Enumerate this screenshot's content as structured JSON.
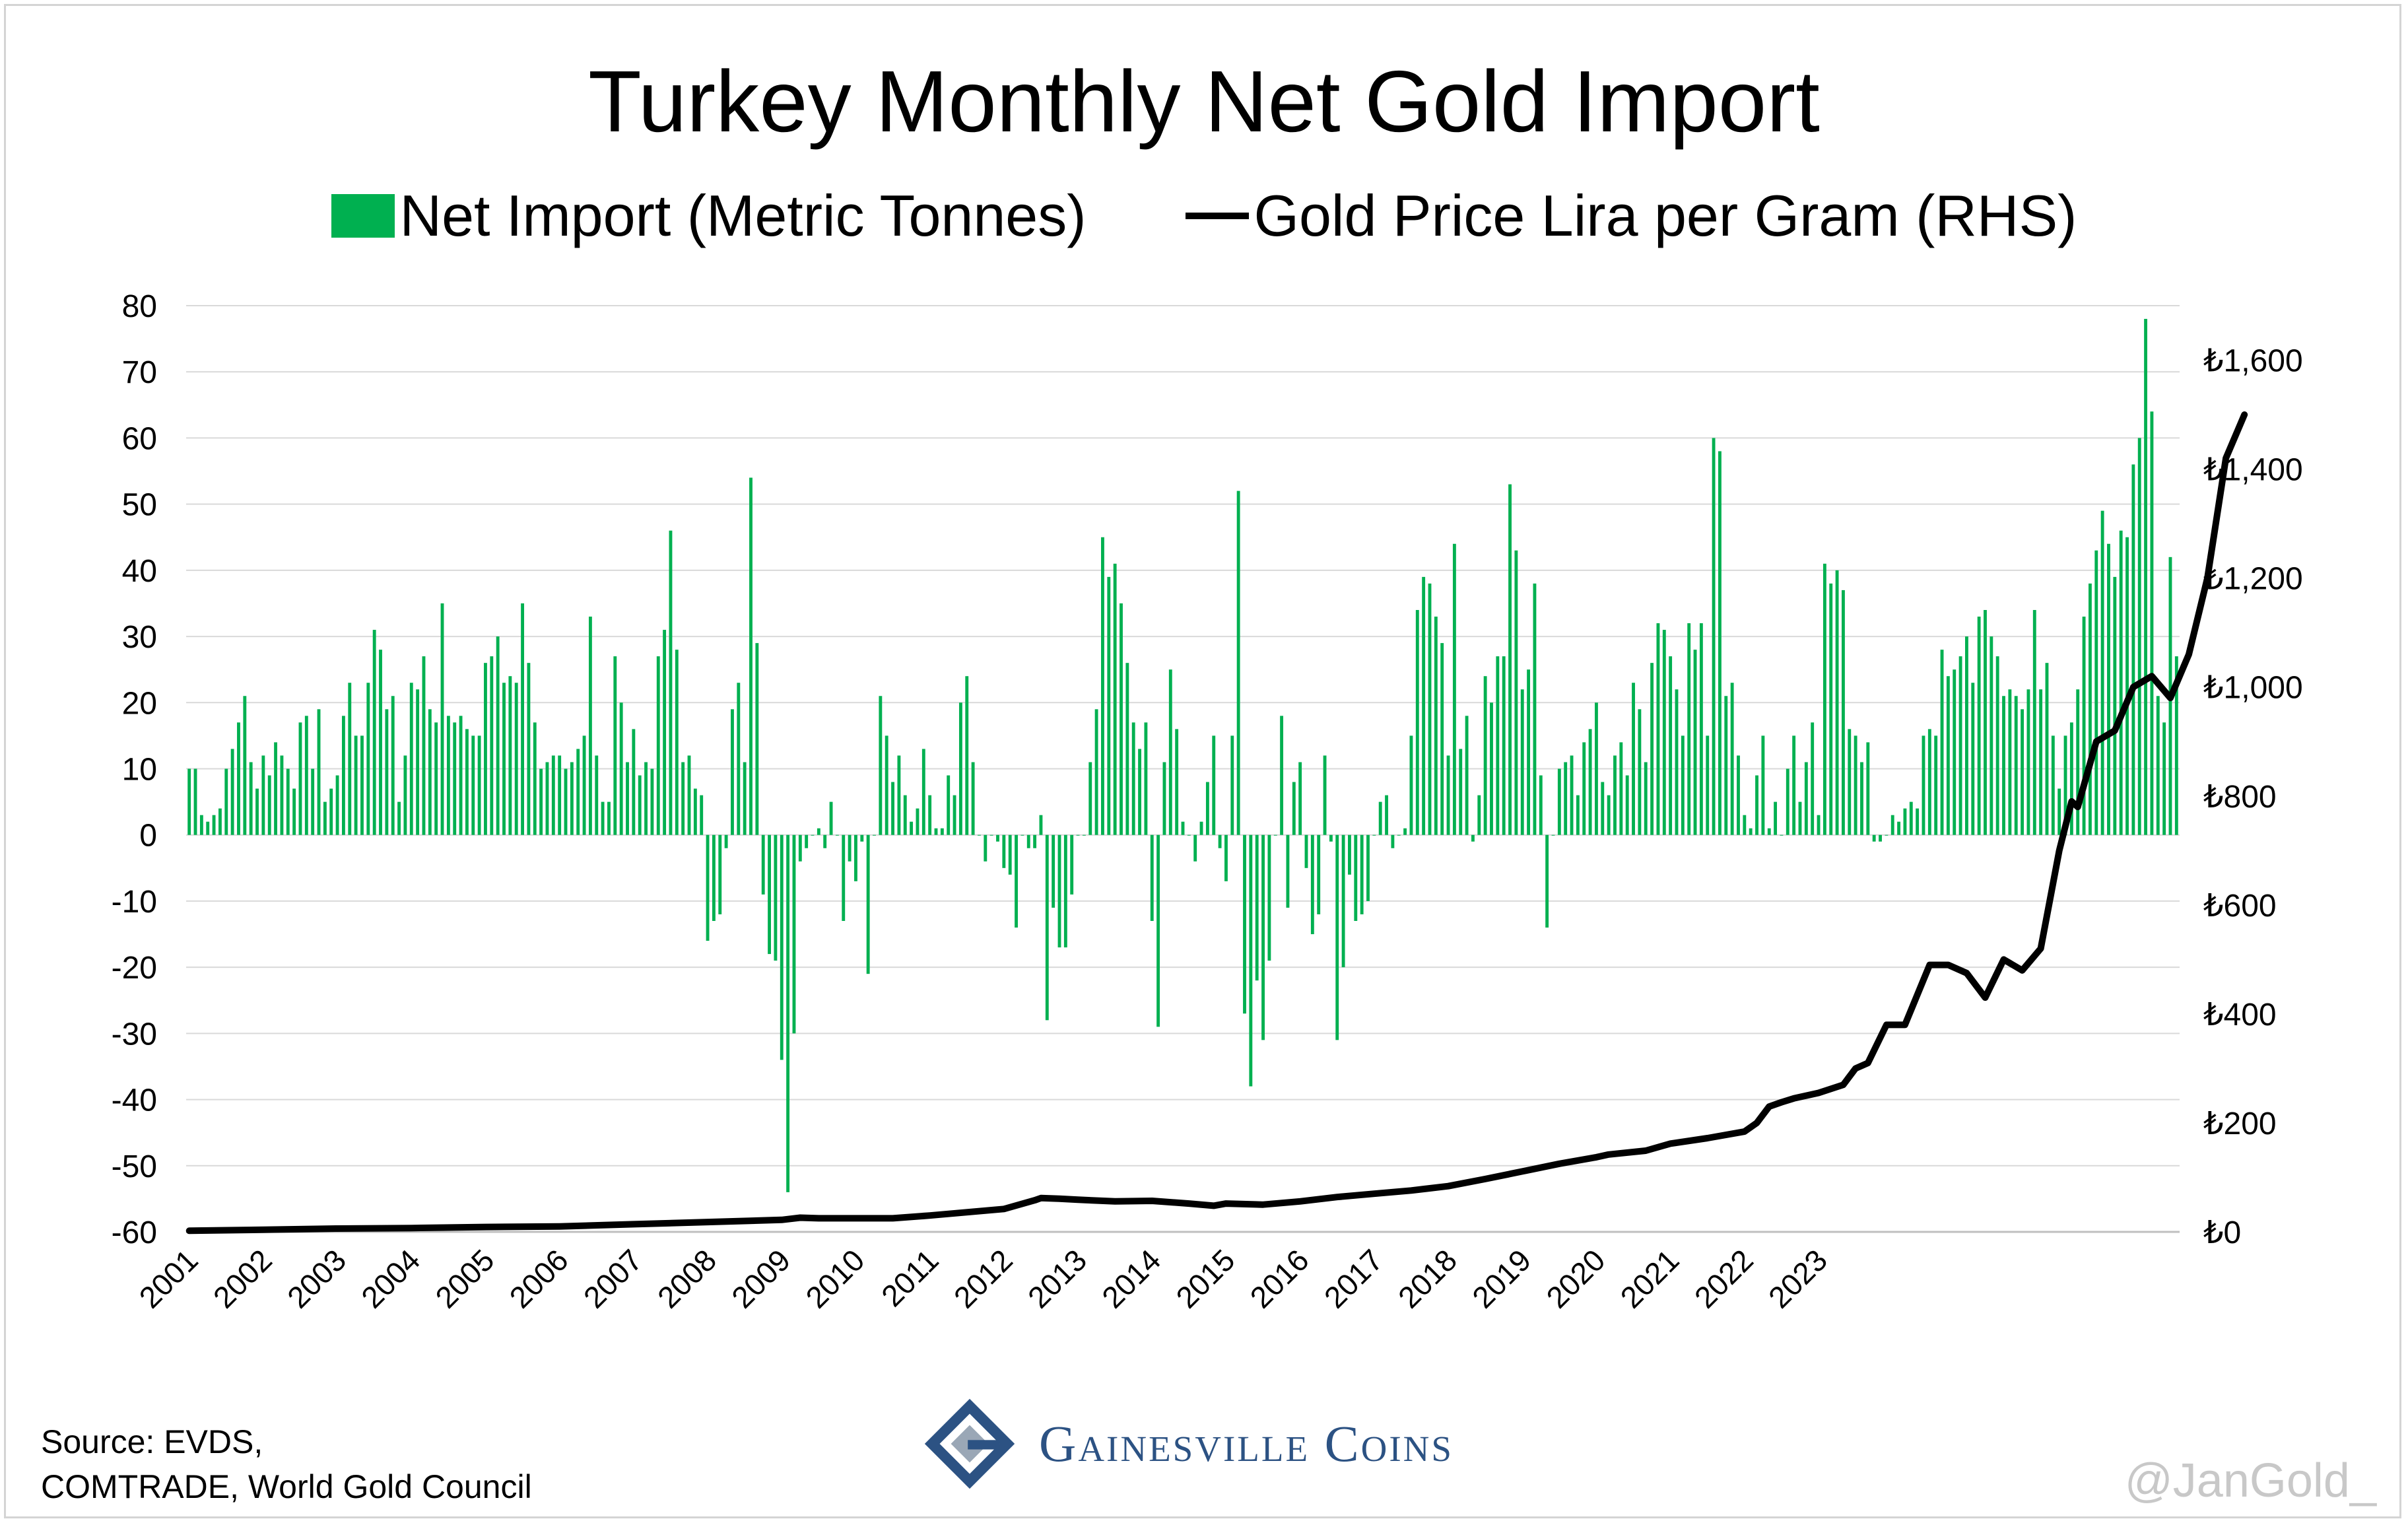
{
  "title": "Turkey Monthly Net Gold Import",
  "legend": {
    "bars": "Net Import (Metric Tonnes)",
    "line": "Gold Price Lira per Gram (RHS)"
  },
  "colors": {
    "bar": "#00b050",
    "line": "#000000",
    "grid": "#d9d9d9",
    "brand": "#2c5283"
  },
  "source": {
    "line1": "Source: EVDS,",
    "line2": "COMTRADE, World Gold Council"
  },
  "brand": "Gainesville Coins",
  "handle": "@JanGold_",
  "chart_data": {
    "type": "bar",
    "title": "Turkey Monthly Net Gold Import",
    "ylim": [
      -60,
      80
    ],
    "yticks": [
      -60,
      -50,
      -40,
      -30,
      -20,
      -10,
      0,
      10,
      20,
      30,
      40,
      50,
      60,
      70,
      80
    ],
    "y2lim": [
      0,
      1700
    ],
    "y2ticks": [
      0,
      200,
      400,
      600,
      800,
      1000,
      1200,
      1400,
      1600
    ],
    "y2ticklabels": [
      "₺0",
      "₺200",
      "₺400",
      "₺600",
      "₺800",
      "₺1,000",
      "₺1,200",
      "₺1,400",
      "₺1,600"
    ],
    "xticklabels": [
      "2001",
      "2002",
      "2003",
      "2004",
      "2005",
      "2006",
      "2007",
      "2008",
      "2009",
      "2010",
      "2011",
      "2012",
      "2013",
      "2014",
      "2015",
      "2016",
      "2017",
      "2018",
      "2019",
      "2020",
      "2021",
      "2022",
      "2023"
    ],
    "start": "2001-01",
    "series": [
      {
        "name": "Net Import (Metric Tonnes)",
        "type": "bar",
        "axis": "left",
        "values": [
          10,
          10,
          3,
          2,
          3,
          4,
          10,
          13,
          17,
          21,
          11,
          7,
          12,
          9,
          14,
          12,
          10,
          7,
          17,
          18,
          10,
          19,
          5,
          7,
          9,
          18,
          23,
          15,
          15,
          23,
          31,
          28,
          19,
          21,
          5,
          12,
          23,
          22,
          27,
          19,
          17,
          35,
          18,
          17,
          18,
          16,
          15,
          15,
          26,
          27,
          30,
          23,
          24,
          23,
          35,
          26,
          17,
          10,
          11,
          12,
          12,
          10,
          11,
          13,
          15,
          33,
          12,
          5,
          5,
          27,
          20,
          11,
          16,
          9,
          11,
          10,
          27,
          31,
          46,
          28,
          11,
          12,
          7,
          6,
          -16,
          -13,
          -12,
          -2,
          19,
          23,
          11,
          54,
          29,
          -9,
          -18,
          -19,
          -34,
          -54,
          -30,
          -4,
          -2,
          0,
          1,
          -2,
          5,
          0,
          -13,
          -4,
          -7,
          -1,
          -21,
          0,
          21,
          15,
          8,
          12,
          6,
          2,
          4,
          13,
          6,
          1,
          1,
          9,
          6,
          20,
          24,
          11,
          0,
          -4,
          0,
          -1,
          -5,
          -6,
          -14,
          0,
          -2,
          -2,
          3,
          -28,
          -11,
          -17,
          -17,
          -9,
          0,
          0,
          11,
          19,
          45,
          39,
          41,
          35,
          26,
          17,
          13,
          17,
          -13,
          -29,
          11,
          25,
          16,
          2,
          0,
          -4,
          2,
          8,
          15,
          -2,
          -7,
          15,
          52,
          -27,
          -38,
          -22,
          -31,
          -19,
          0,
          18,
          -11,
          8,
          11,
          -5,
          -15,
          -12,
          12,
          -1,
          -31,
          -20,
          -6,
          -13,
          -12,
          -10,
          0,
          5,
          6,
          -2,
          0,
          1,
          15,
          34,
          39,
          38,
          33,
          29,
          12,
          44,
          13,
          18,
          -1,
          6,
          24,
          20,
          27,
          27,
          53,
          43,
          22,
          25,
          38,
          9,
          -14,
          0,
          10,
          11,
          12,
          6,
          14,
          16,
          20,
          8,
          6,
          12,
          14,
          9,
          23,
          19,
          11,
          26,
          32,
          31,
          27,
          22,
          15,
          32,
          28,
          32,
          15,
          60,
          58,
          21,
          23,
          12,
          3,
          1,
          9,
          15,
          1,
          5,
          0,
          10,
          15,
          5,
          11,
          17,
          3,
          41,
          38,
          40,
          37,
          16,
          15,
          11,
          14,
          -1,
          -1,
          0,
          3,
          2,
          4,
          5,
          4,
          15,
          16,
          15,
          28,
          24,
          25,
          27,
          30,
          23,
          33,
          34,
          30,
          27,
          21,
          22,
          21,
          19,
          22,
          34,
          22,
          26,
          15,
          7,
          15,
          17,
          22,
          33,
          38,
          43,
          49,
          44,
          39,
          46,
          45,
          56,
          60,
          78,
          64,
          21,
          17,
          42,
          27
        ]
      },
      {
        "name": "Gold Price Lira per Gram (RHS)",
        "type": "line",
        "axis": "right",
        "points": [
          [
            0,
            2
          ],
          [
            12,
            4
          ],
          [
            24,
            6
          ],
          [
            36,
            7
          ],
          [
            48,
            9
          ],
          [
            60,
            10
          ],
          [
            72,
            14
          ],
          [
            84,
            18
          ],
          [
            96,
            22
          ],
          [
            99,
            26
          ],
          [
            102,
            25
          ],
          [
            108,
            25
          ],
          [
            114,
            25
          ],
          [
            120,
            30
          ],
          [
            132,
            42
          ],
          [
            137,
            58
          ],
          [
            138,
            62
          ],
          [
            141,
            61
          ],
          [
            144,
            59
          ],
          [
            150,
            56
          ],
          [
            156,
            57
          ],
          [
            162,
            52
          ],
          [
            166,
            48
          ],
          [
            168,
            52
          ],
          [
            174,
            50
          ],
          [
            180,
            56
          ],
          [
            186,
            64
          ],
          [
            192,
            70
          ],
          [
            198,
            76
          ],
          [
            204,
            84
          ],
          [
            210,
            97
          ],
          [
            216,
            111
          ],
          [
            222,
            125
          ],
          [
            228,
            137
          ],
          [
            230,
            142
          ],
          [
            236,
            149
          ],
          [
            240,
            162
          ],
          [
            246,
            172
          ],
          [
            252,
            184
          ],
          [
            254,
            200
          ],
          [
            256,
            230
          ],
          [
            258,
            238
          ],
          [
            260,
            245
          ],
          [
            264,
            255
          ],
          [
            268,
            270
          ],
          [
            270,
            300
          ],
          [
            272,
            310
          ],
          [
            275,
            380
          ],
          [
            278,
            380
          ],
          [
            282,
            490
          ],
          [
            285,
            490
          ],
          [
            288,
            475
          ],
          [
            291,
            430
          ],
          [
            294,
            500
          ],
          [
            297,
            480
          ],
          [
            300,
            520
          ],
          [
            303,
            700
          ],
          [
            305,
            790
          ],
          [
            306,
            780
          ],
          [
            309,
            900
          ],
          [
            312,
            920
          ],
          [
            315,
            1000
          ],
          [
            318,
            1020
          ],
          [
            321,
            980
          ],
          [
            324,
            1060
          ],
          [
            327,
            1200
          ],
          [
            330,
            1420
          ],
          [
            333,
            1500
          ]
        ]
      }
    ]
  }
}
